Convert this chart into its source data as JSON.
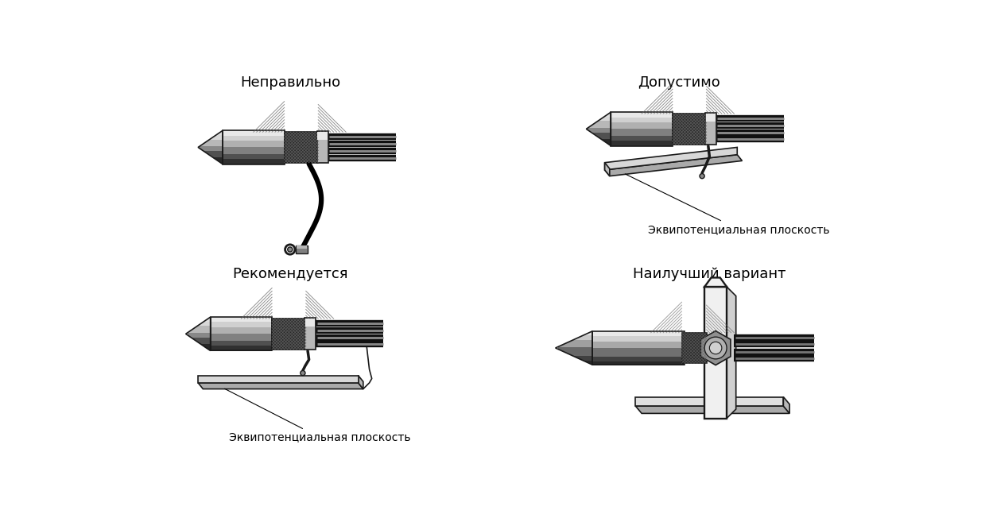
{
  "label_nepravilno": "Неправильно",
  "label_dopustimo": "Допустимо",
  "label_rekomenduetsya": "Рекомендуется",
  "label_nailuchshiy": "Наилучший вариант",
  "label_ekvip": "Эквипотенциальная плоскость",
  "bg_color": "#ffffff",
  "font_size_label": 13,
  "font_size_annot": 10
}
